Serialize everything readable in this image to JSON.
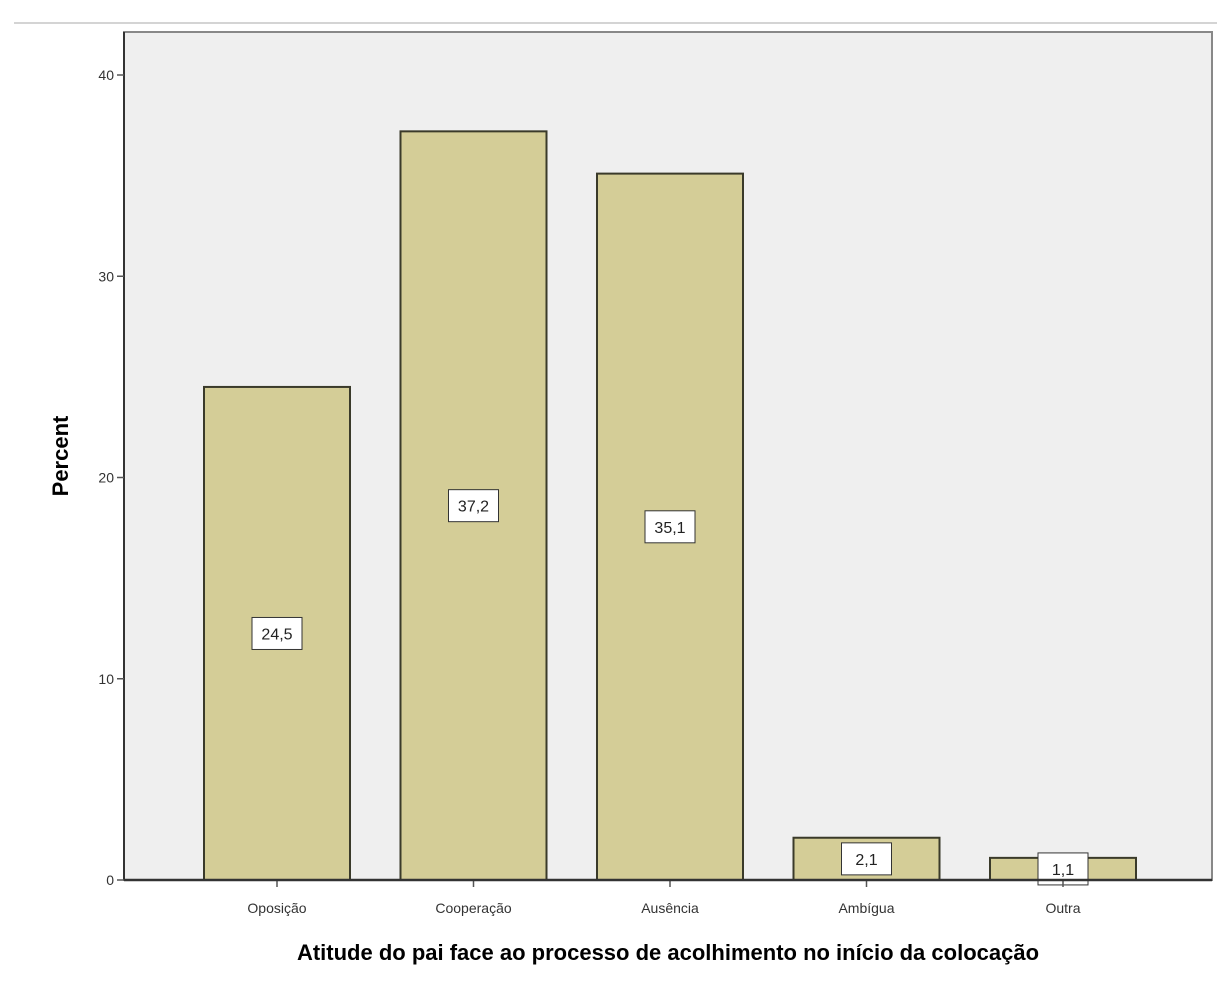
{
  "chart_data": {
    "type": "bar",
    "categories": [
      "Oposição",
      "Cooperação",
      "Ausência",
      "Ambígua",
      "Outra"
    ],
    "values": [
      24.5,
      37.2,
      35.1,
      2.1,
      1.1
    ],
    "data_labels": [
      "24,5",
      "37,2",
      "35,1",
      "2,1",
      "1,1"
    ],
    "xlabel": "Atitude do pai face ao processo de acolhimento no início da colocação",
    "ylabel": "Percent",
    "ylim": [
      0,
      42
    ],
    "yticks": [
      0,
      10,
      20,
      30,
      40
    ],
    "grid": false,
    "colors": {
      "bar_fill": "#d4cd97",
      "bar_stroke": "#3a3a2a",
      "plot_background": "#efefef",
      "frame": "#888888",
      "label_box": "#ffffff"
    }
  }
}
